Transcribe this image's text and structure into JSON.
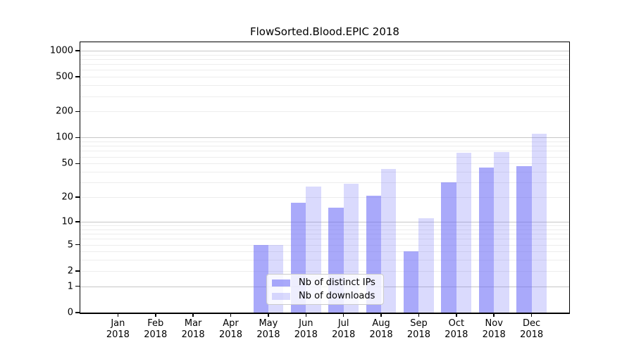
{
  "title": "FlowSorted.Blood.EPIC 2018",
  "legend": {
    "items": [
      {
        "label": "Nb of distinct IPs"
      },
      {
        "label": "Nb of downloads"
      }
    ]
  },
  "colors": {
    "bar_fill_ips": "rgba(106,106,246,0.58)",
    "bar_fill_downloads": "rgba(106,106,246,0.25)",
    "major_grid": "#c7c7c7",
    "minor_grid": "#ededed",
    "axis": "#000000"
  },
  "axes": {
    "y_tick_values": [
      0,
      1,
      2,
      5,
      10,
      20,
      50,
      100,
      200,
      500,
      1000
    ],
    "y_scale": "log1p",
    "x_month_labels": [
      "Jan",
      "Feb",
      "Mar",
      "Apr",
      "May",
      "Jun",
      "Jul",
      "Aug",
      "Sep",
      "Oct",
      "Nov",
      "Dec"
    ],
    "x_year_label": "2018"
  },
  "chart_data": {
    "type": "bar",
    "title": "FlowSorted.Blood.EPIC 2018",
    "categories": [
      "Jan 2018",
      "Feb 2018",
      "Mar 2018",
      "Apr 2018",
      "May 2018",
      "Jun 2018",
      "Jul 2018",
      "Aug 2018",
      "Sep 2018",
      "Oct 2018",
      "Nov 2018",
      "Dec 2018"
    ],
    "series": [
      {
        "name": "Nb of distinct IPs",
        "values": [
          0,
          0,
          0,
          0,
          5,
          17,
          15,
          21,
          4,
          30,
          45,
          47
        ]
      },
      {
        "name": "Nb of downloads",
        "values": [
          0,
          0,
          0,
          0,
          5,
          27,
          29,
          43,
          11,
          67,
          68,
          110
        ]
      }
    ],
    "yscale": "log1p",
    "ytick_values": [
      0,
      1,
      2,
      5,
      10,
      20,
      50,
      100,
      200,
      500,
      1000
    ],
    "ylim": [
      0,
      1280
    ],
    "xlabel": "",
    "ylabel": "",
    "grid": "horizontal",
    "legend_position": "inside-bottom-center"
  }
}
